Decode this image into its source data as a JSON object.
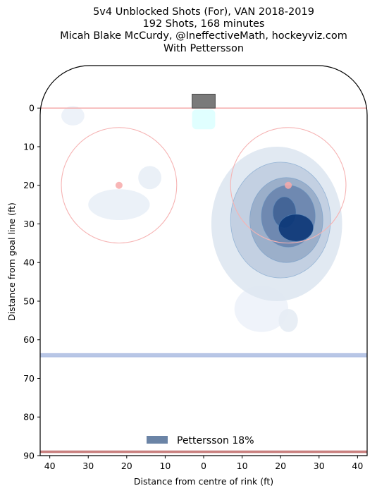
{
  "chart_data": {
    "type": "heatmap",
    "title_lines": [
      "5v4 Unblocked Shots (For), VAN 2018-2019",
      "192 Shots, 168 minutes",
      "Micah Blake McCurdy, @IneffectiveMath, hockeyviz.com",
      "With Pettersson"
    ],
    "xlabel": "Distance from centre of rink (ft)",
    "ylabel": "Distance from goal line (ft)",
    "xlim": [
      -42.5,
      42.5
    ],
    "ylim": [
      90,
      -11
    ],
    "x_ticks": [
      {
        "value": -40,
        "label": "40"
      },
      {
        "value": -30,
        "label": "30"
      },
      {
        "value": -20,
        "label": "20"
      },
      {
        "value": -10,
        "label": "10"
      },
      {
        "value": 0,
        "label": "0"
      },
      {
        "value": 10,
        "label": "10"
      },
      {
        "value": 20,
        "label": "20"
      },
      {
        "value": 30,
        "label": "30"
      },
      {
        "value": 40,
        "label": "40"
      }
    ],
    "y_ticks": [
      0,
      10,
      20,
      30,
      40,
      50,
      60,
      70,
      80,
      90
    ],
    "legend": {
      "label": "Pettersson 18%",
      "color": "#6b84a6",
      "position": "bottom-center"
    },
    "faceoff_circles": [
      {
        "x": -22,
        "y": 20,
        "r": 15
      },
      {
        "x": 22,
        "y": 20,
        "r": 15
      }
    ],
    "rink_lines": {
      "goal_line": 0,
      "blue_line": 64,
      "red_line": 89
    },
    "density_blobs": [
      {
        "x": 24,
        "y": 31,
        "rx": 4.5,
        "ry": 3.5,
        "level": 1.0
      },
      {
        "x": 21,
        "y": 27,
        "rx": 3,
        "ry": 4,
        "level": 0.75
      },
      {
        "x": 22,
        "y": 28,
        "rx": 7,
        "ry": 8,
        "level": 0.55
      },
      {
        "x": 21.5,
        "y": 29,
        "rx": 9.5,
        "ry": 11,
        "level": 0.35
      },
      {
        "x": 20,
        "y": 29,
        "rx": 13,
        "ry": 15,
        "level": 0.18
      },
      {
        "x": 19,
        "y": 30,
        "rx": 17,
        "ry": 20,
        "level": 0.07
      },
      {
        "x": 22,
        "y": 55,
        "rx": 2.5,
        "ry": 3,
        "level": 0.05
      },
      {
        "x": -14,
        "y": 18,
        "rx": 3,
        "ry": 3,
        "level": 0.04
      },
      {
        "x": -22,
        "y": 25,
        "rx": 8,
        "ry": 4,
        "level": 0.035
      },
      {
        "x": -34,
        "y": 2,
        "rx": 3,
        "ry": 2.5,
        "level": 0.03
      },
      {
        "x": 15,
        "y": 52,
        "rx": 7,
        "ry": 6,
        "level": 0.025
      }
    ]
  }
}
